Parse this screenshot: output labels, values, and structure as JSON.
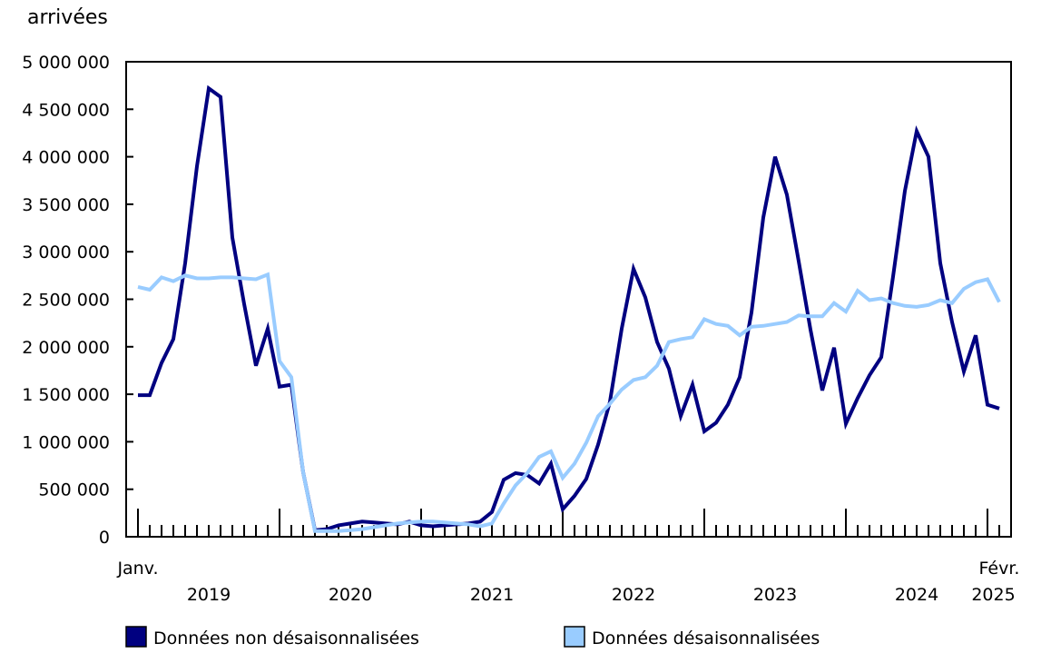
{
  "chart_data": {
    "type": "line",
    "title": "",
    "ylabel": "arrivées",
    "xlabel": "",
    "ylim": [
      0,
      5000000
    ],
    "yticks": [
      0,
      500000,
      1000000,
      1500000,
      2000000,
      2500000,
      3000000,
      3500000,
      4000000,
      4500000,
      5000000
    ],
    "ytick_labels": [
      "0",
      "500 000",
      "1 000 000",
      "1 500 000",
      "2 000 000",
      "2 500 000",
      "3 000 000",
      "3 500 000",
      "4 000 000",
      "4 500 000",
      "5 000 000"
    ],
    "x_start": "2019-01",
    "x_end": "2025-02",
    "x_start_label": "Janv.",
    "x_end_label": "Févr.",
    "year_labels": [
      "2019",
      "2020",
      "2021",
      "2022",
      "2023",
      "2024",
      "2025"
    ],
    "grid": false,
    "legend_position": "bottom",
    "series": [
      {
        "name": "Données non désaisonnalisées",
        "color": "#000080",
        "values": [
          1490000,
          1490000,
          1830000,
          2080000,
          2880000,
          3900000,
          4720000,
          4630000,
          3150000,
          2450000,
          1800000,
          2190000,
          1580000,
          1600000,
          680000,
          70000,
          80000,
          120000,
          140000,
          160000,
          150000,
          140000,
          130000,
          160000,
          120000,
          110000,
          120000,
          130000,
          140000,
          160000,
          260000,
          600000,
          670000,
          650000,
          560000,
          770000,
          290000,
          430000,
          610000,
          970000,
          1420000,
          2190000,
          2820000,
          2520000,
          2050000,
          1770000,
          1270000,
          1600000,
          1110000,
          1200000,
          1390000,
          1680000,
          2360000,
          3360000,
          4000000,
          3600000,
          2900000,
          2180000,
          1540000,
          1990000,
          1190000,
          1460000,
          1700000,
          1890000,
          2740000,
          3640000,
          4270000,
          4000000,
          2880000,
          2260000,
          1740000,
          2120000,
          1390000,
          1350000
        ]
      },
      {
        "name": "Données désaisonnalisées",
        "color": "#99CCFF",
        "values": [
          2630000,
          2600000,
          2730000,
          2690000,
          2750000,
          2720000,
          2720000,
          2730000,
          2730000,
          2720000,
          2710000,
          2760000,
          1850000,
          1680000,
          680000,
          60000,
          60000,
          60000,
          70000,
          80000,
          100000,
          120000,
          140000,
          150000,
          160000,
          160000,
          150000,
          140000,
          130000,
          110000,
          140000,
          350000,
          540000,
          670000,
          840000,
          900000,
          620000,
          770000,
          990000,
          1270000,
          1400000,
          1550000,
          1650000,
          1680000,
          1800000,
          2050000,
          2080000,
          2100000,
          2290000,
          2240000,
          2220000,
          2120000,
          2210000,
          2220000,
          2240000,
          2260000,
          2330000,
          2320000,
          2320000,
          2460000,
          2370000,
          2590000,
          2490000,
          2510000,
          2460000,
          2430000,
          2420000,
          2440000,
          2490000,
          2460000,
          2610000,
          2680000,
          2710000,
          2470000
        ]
      }
    ]
  }
}
